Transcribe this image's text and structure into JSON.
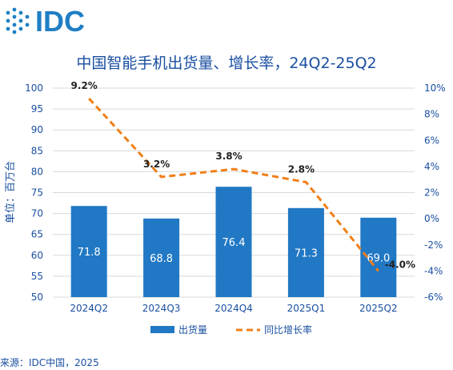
{
  "brand": {
    "logo_text": "IDC",
    "color": "#1f7fc4"
  },
  "chart_title": "中国智能手机出货量、增长率，24Q2-25Q2",
  "source_text": "来源：IDC中国，2025",
  "chart_data": {
    "type": "bar",
    "title": "中国智能手机出货量、增长率，24Q2-25Q2",
    "categories": [
      "2024Q2",
      "2024Q3",
      "2024Q4",
      "2025Q1",
      "2025Q2"
    ],
    "series": [
      {
        "name": "出货量",
        "type": "bar",
        "axis": "left",
        "color": "#2178c4",
        "values": [
          71.8,
          68.8,
          76.4,
          71.3,
          69.0
        ],
        "labels": [
          "71.8",
          "68.8",
          "76.4",
          "71.3",
          "69.0"
        ]
      },
      {
        "name": "同比增长率",
        "type": "line",
        "axis": "right",
        "color": "#f07f19",
        "dashed": true,
        "values": [
          9.2,
          3.2,
          3.8,
          2.8,
          -4.0
        ],
        "labels": [
          "9.2%",
          "3.2%",
          "3.8%",
          "2.8%",
          "-4.0%"
        ]
      }
    ],
    "ylabel": "单位：百万台",
    "ylim": [
      50,
      100
    ],
    "yticks": [
      "50",
      "55",
      "60",
      "65",
      "70",
      "75",
      "80",
      "85",
      "90",
      "95",
      "100"
    ],
    "y2lim": [
      -6,
      10
    ],
    "y2ticks": [
      "-6%",
      "-4%",
      "-2%",
      "0%",
      "2%",
      "4%",
      "6%",
      "8%",
      "10%"
    ],
    "grid": true,
    "legend": "bottom"
  }
}
